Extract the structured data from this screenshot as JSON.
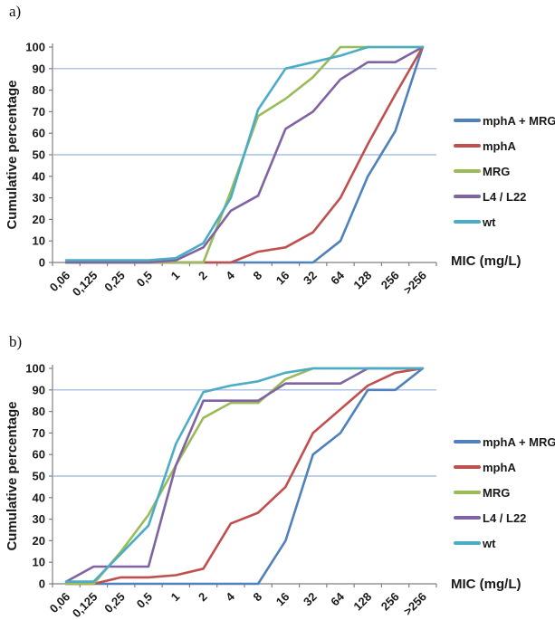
{
  "figure": {
    "panel_a_label": "a)",
    "panel_b_label": "b)",
    "y_axis_title": "Cumulative percentage",
    "x_axis_title": "MIC (mg/L)"
  },
  "styles": {
    "grid_color": "#95B3D7",
    "axis_color": "#7f7f7f",
    "text_color": "#1a1a1a"
  },
  "chart_data": [
    {
      "id": "a",
      "type": "line",
      "panel": "a)",
      "ylabel": "Cumulative percentage",
      "xlabel": "MIC (mg/L)",
      "ylim": [
        0,
        100
      ],
      "ytick_step": 10,
      "reference_lines": [
        50,
        90
      ],
      "legend_position": "right",
      "grid": "horizontal-50-90-only",
      "categories": [
        "0,06",
        "0,125",
        "0,25",
        "0,5",
        "1",
        "2",
        "4",
        "8",
        "16",
        "32",
        "64",
        "128",
        "256",
        ">256"
      ],
      "series": [
        {
          "name": "mphA + MRG",
          "color": "#4F81BD",
          "values": [
            0,
            0,
            0,
            0,
            0,
            0,
            0,
            0,
            0,
            0,
            10,
            40,
            61,
            100
          ]
        },
        {
          "name": "mphA",
          "color": "#C0504D",
          "values": [
            0,
            0,
            0,
            0,
            0,
            0,
            0,
            5,
            7,
            14,
            30,
            55,
            78,
            100
          ]
        },
        {
          "name": "MRG",
          "color": "#9BBB59",
          "values": [
            0,
            0,
            0,
            0,
            0,
            0,
            33,
            68,
            76,
            86,
            100,
            100,
            100,
            100
          ]
        },
        {
          "name": "L4 / L22",
          "color": "#8064A2",
          "values": [
            0,
            0,
            0,
            0,
            1,
            7,
            24,
            31,
            62,
            70,
            85,
            93,
            93,
            100
          ]
        },
        {
          "name": "wt",
          "color": "#4BACC6",
          "values": [
            1,
            1,
            1,
            1,
            2,
            9,
            30,
            71,
            90,
            93,
            96,
            100,
            100,
            100
          ]
        }
      ]
    },
    {
      "id": "b",
      "type": "line",
      "panel": "b)",
      "ylabel": "Cumulative percentage",
      "xlabel": "MIC (mg/L)",
      "ylim": [
        0,
        100
      ],
      "ytick_step": 10,
      "reference_lines": [
        50,
        90
      ],
      "legend_position": "right",
      "grid": "horizontal-50-90-only",
      "categories": [
        "0,06",
        "0,125",
        "0,25",
        "0,5",
        "1",
        "2",
        "4",
        "8",
        "16",
        "32",
        "64",
        "128",
        "256",
        ">256"
      ],
      "series": [
        {
          "name": "mphA + MRG",
          "color": "#4F81BD",
          "values": [
            0,
            0,
            0,
            0,
            0,
            0,
            0,
            0,
            20,
            60,
            70,
            90,
            90,
            100
          ]
        },
        {
          "name": "mphA",
          "color": "#C0504D",
          "values": [
            0,
            0,
            3,
            3,
            4,
            7,
            28,
            33,
            45,
            70,
            81,
            92,
            98,
            100
          ]
        },
        {
          "name": "MRG",
          "color": "#9BBB59",
          "values": [
            0,
            0,
            15,
            32,
            55,
            77,
            84,
            84,
            95,
            100,
            100,
            100,
            100,
            100
          ]
        },
        {
          "name": "L4 / L22",
          "color": "#8064A2",
          "values": [
            1,
            8,
            8,
            8,
            55,
            85,
            85,
            85,
            93,
            93,
            93,
            100,
            100,
            100
          ]
        },
        {
          "name": "wt",
          "color": "#4BACC6",
          "values": [
            1,
            1,
            14,
            27,
            65,
            89,
            92,
            94,
            98,
            100,
            100,
            100,
            100,
            100
          ]
        }
      ]
    }
  ]
}
